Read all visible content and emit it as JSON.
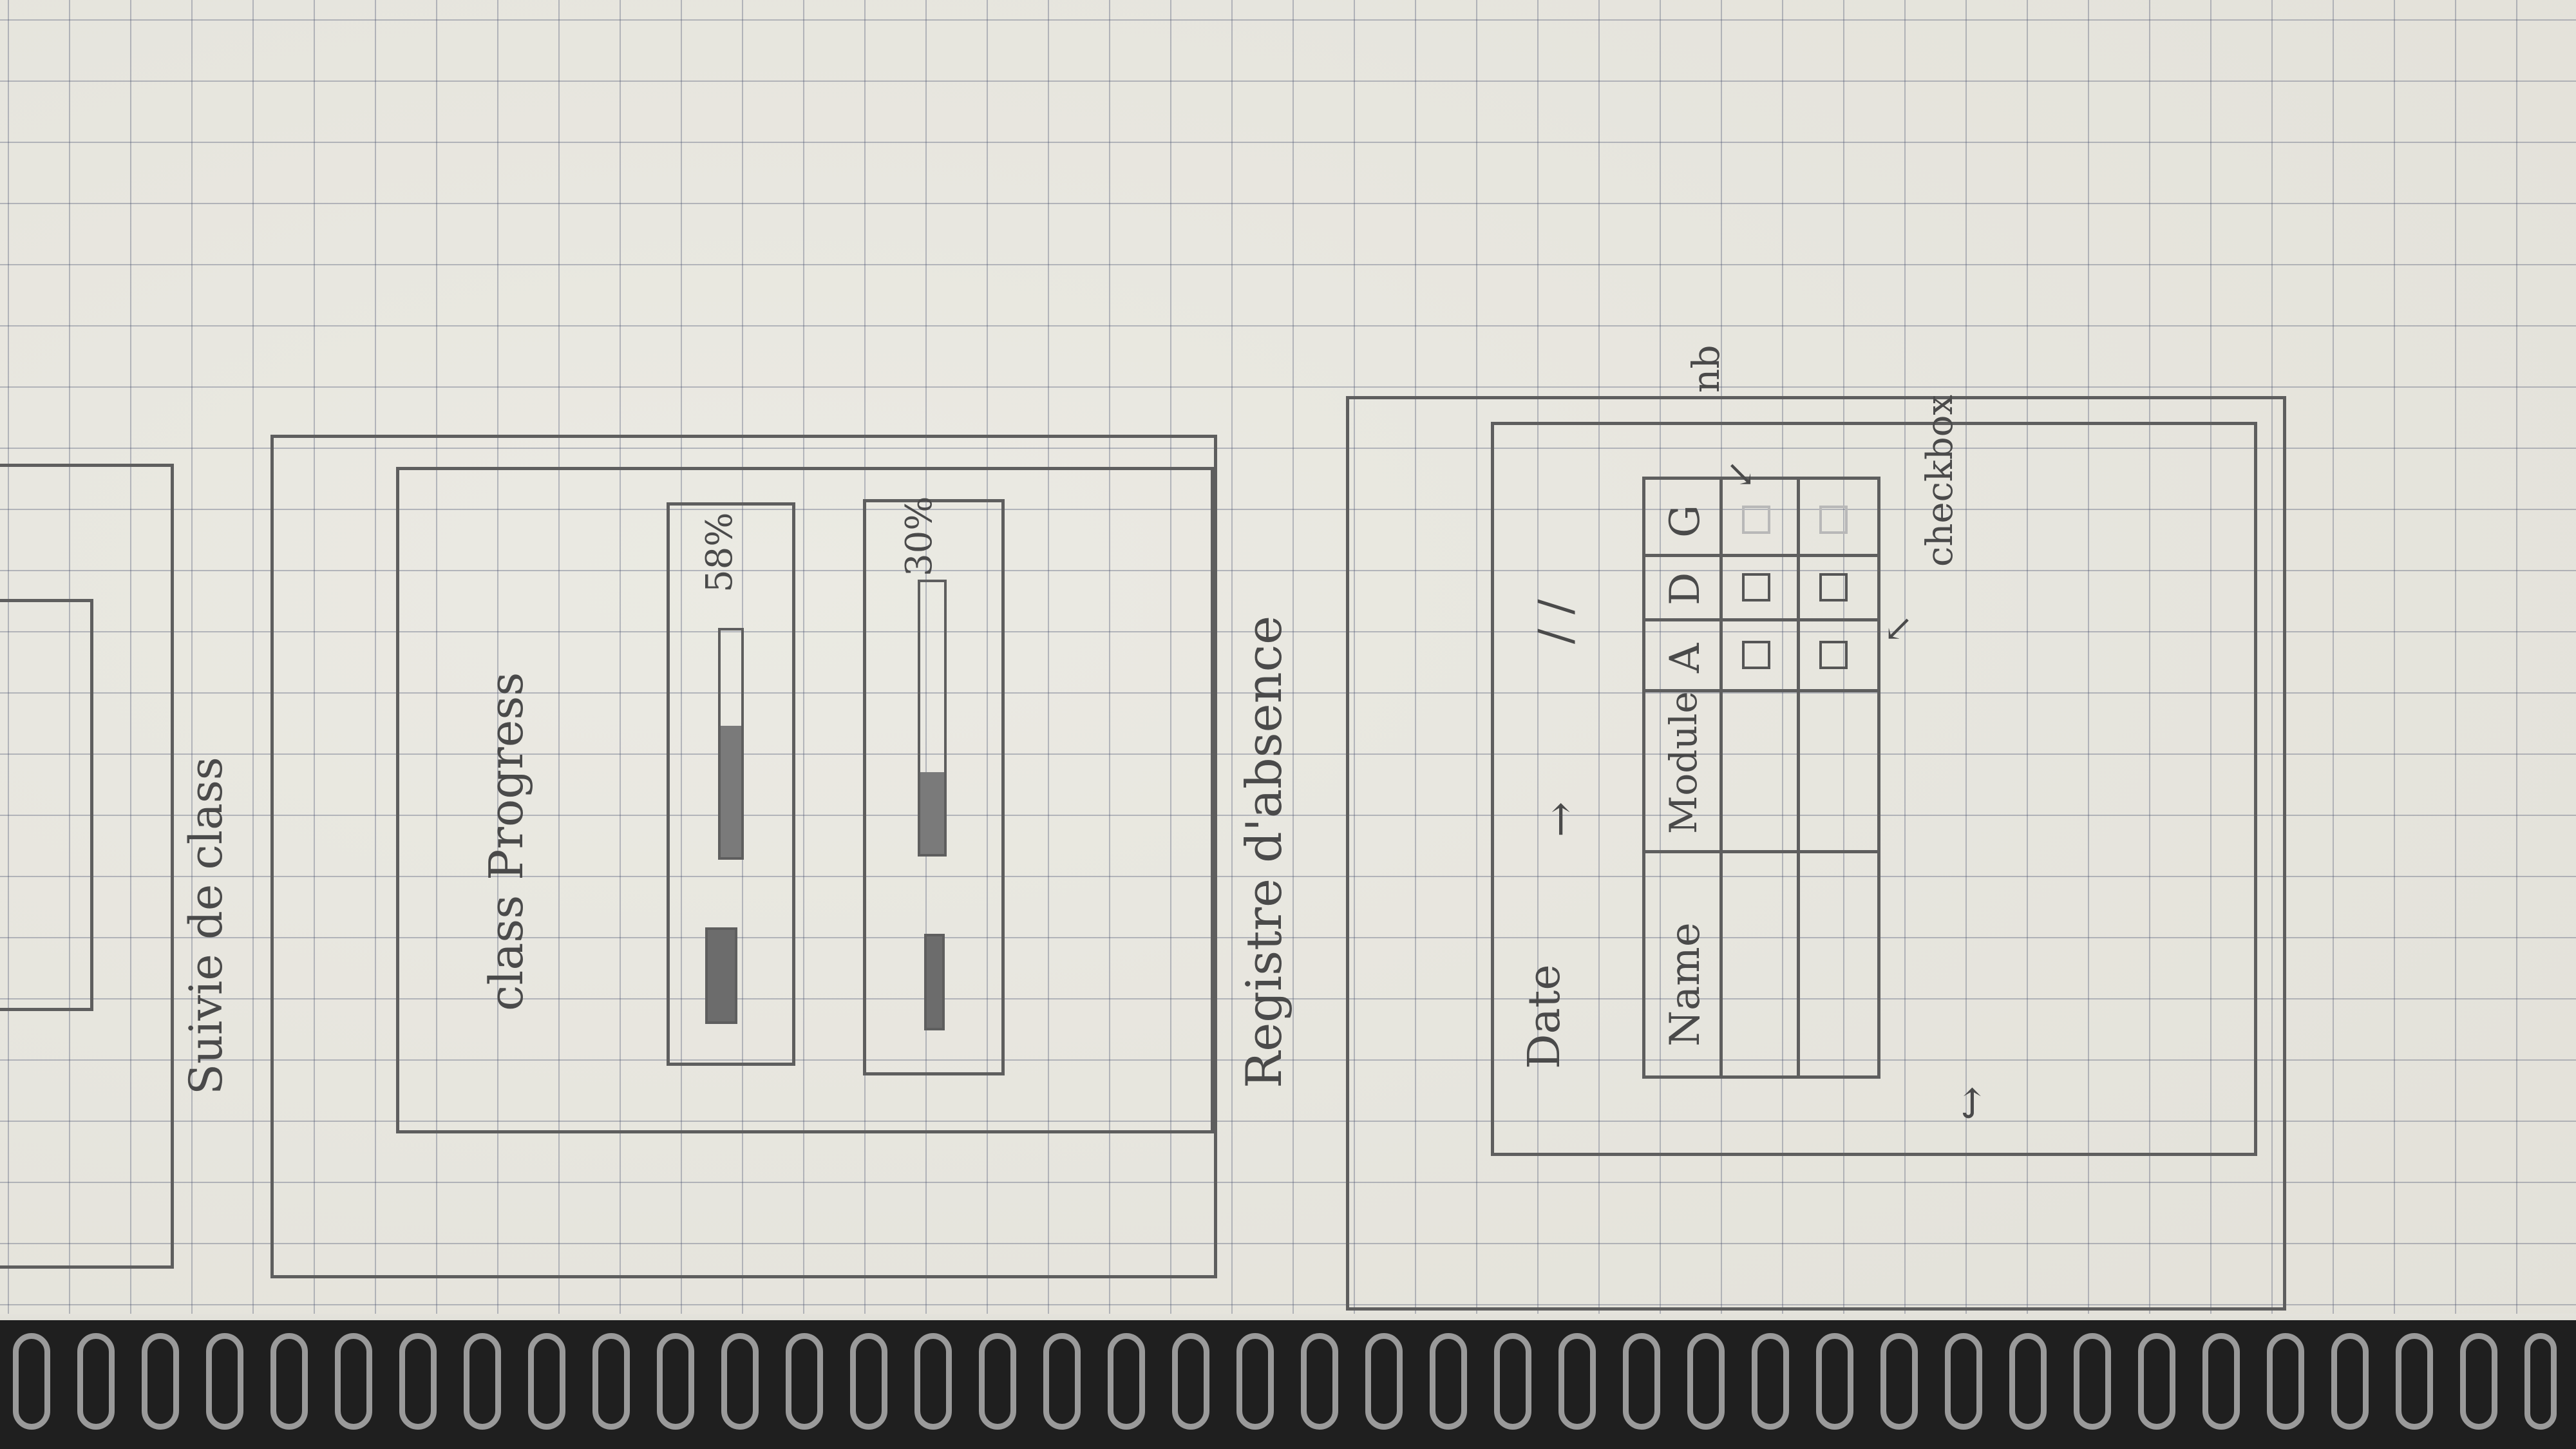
{
  "sketch": {
    "top_panel_title": "Suivie de class",
    "progress_section": {
      "title": "class Progress",
      "bars": [
        {
          "percent_label": "58%",
          "fill": 0.58
        },
        {
          "percent_label": "30%",
          "fill": 0.3
        }
      ]
    },
    "absence_section": {
      "title": "Registre d'absence",
      "date_label": "Date",
      "date_value": "/ /",
      "table": {
        "headers": [
          "Name",
          "Module",
          "A",
          "D",
          "G"
        ],
        "rows": [
          {
            "name": "",
            "module": "",
            "A": false,
            "D": false,
            "G": false
          },
          {
            "name": "",
            "module": "",
            "A": false,
            "D": false,
            "G": false
          }
        ]
      },
      "annotations": {
        "nb": "nb",
        "checkbox": "checkbox"
      }
    }
  },
  "colors": {
    "paper": "#ebeae3",
    "grid": "#8a93ad",
    "pencil": "#5e5e5e"
  }
}
